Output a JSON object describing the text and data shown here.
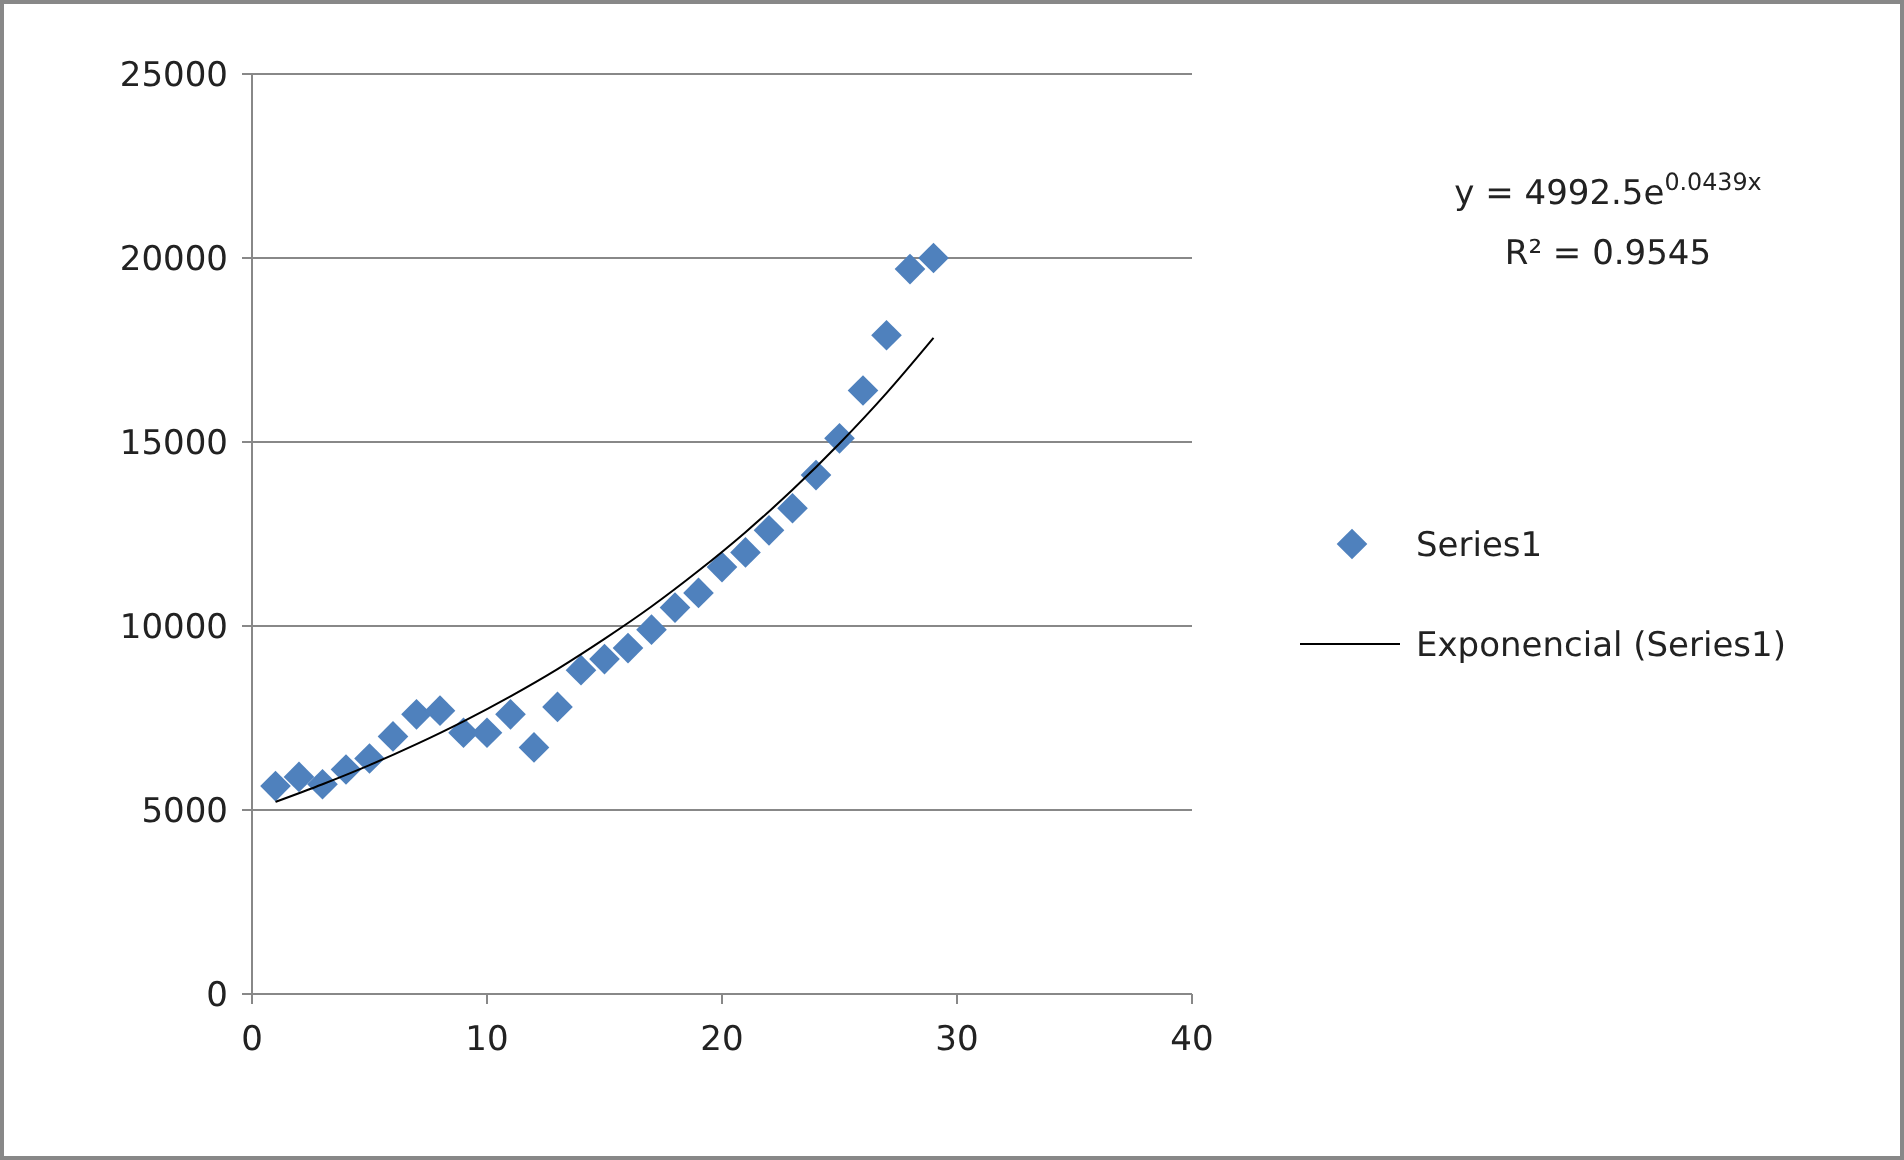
{
  "chart_data": {
    "type": "scatter",
    "xlim": [
      0,
      40
    ],
    "xticks": [
      0,
      10,
      20,
      30,
      40
    ],
    "ylim": [
      0,
      25000
    ],
    "yticks": [
      0,
      5000,
      10000,
      15000,
      20000,
      25000
    ],
    "grid": "y",
    "legend": "right",
    "series": [
      {
        "name": "Series1",
        "marker": "diamond",
        "color": "#4f81bd",
        "x": [
          1,
          2,
          3,
          4,
          5,
          6,
          7,
          8,
          9,
          10,
          11,
          12,
          13,
          14,
          15,
          16,
          17,
          18,
          19,
          20,
          21,
          22,
          23,
          24,
          25,
          26,
          27,
          28,
          29
        ],
        "values": [
          5650,
          5900,
          5700,
          6100,
          6400,
          7000,
          7600,
          7700,
          7100,
          7100,
          7600,
          6700,
          7800,
          8800,
          9100,
          9400,
          9900,
          10500,
          10900,
          11600,
          12000,
          12600,
          13200,
          14100,
          15100,
          16400,
          17900,
          19700,
          20000
        ]
      },
      {
        "name": "Exponencial (Series1)",
        "type": "line",
        "marker": "none",
        "line_style": "solid",
        "color": "#000000",
        "x": [
          1,
          3,
          5,
          7,
          9,
          11,
          13,
          15,
          17,
          19,
          21,
          23,
          25,
          27,
          29
        ],
        "values": [
          5220,
          5700,
          6220,
          6790,
          7410,
          8090,
          8830,
          9650,
          10530,
          11500,
          12550,
          13700,
          14960,
          16330,
          17830
        ]
      }
    ],
    "annotations": [
      "y = 4992.5e$^{0.0439x}$",
      "R² = 0.9545"
    ]
  }
}
